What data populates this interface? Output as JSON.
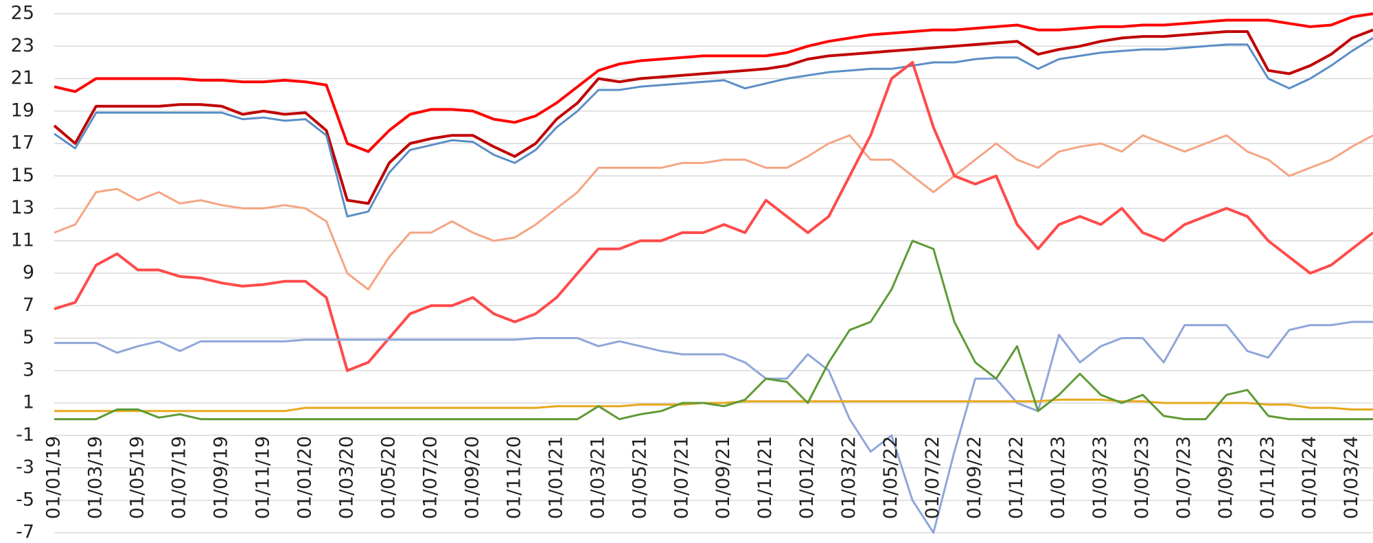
{
  "chart_data": {
    "type": "line",
    "categories": [
      "01/01/19",
      null,
      "01/03/19",
      null,
      "01/05/19",
      null,
      "01/07/19",
      null,
      "01/09/19",
      null,
      "01/11/19",
      null,
      "01/01/20",
      null,
      "01/03/20",
      null,
      "01/05/20",
      null,
      "01/07/20",
      null,
      "01/09/20",
      null,
      "01/11/20",
      null,
      "01/01/21",
      null,
      "01/03/21",
      null,
      "01/05/21",
      null,
      "01/07/21",
      null,
      "01/09/21",
      null,
      "01/11/21",
      null,
      "01/01/22",
      null,
      "01/03/22",
      null,
      "01/05/22",
      null,
      "01/07/22",
      null,
      "01/09/22",
      null,
      "01/11/22",
      null,
      "01/01/23",
      null,
      "01/03/23",
      null,
      "01/05/23",
      null,
      "01/07/23",
      null,
      "01/09/23",
      null,
      "01/11/23",
      null,
      "01/01/24",
      null,
      "01/03/24",
      null
    ],
    "ylim": [
      -7,
      25
    ],
    "yticks": [
      -7,
      -5,
      -3,
      -1,
      1,
      3,
      5,
      7,
      9,
      11,
      13,
      15,
      17,
      19,
      21,
      23,
      25
    ],
    "grid": true,
    "series": [
      {
        "color": "#ff0000",
        "width": 4,
        "values": [
          20.5,
          20.2,
          21,
          21,
          21,
          21,
          21,
          20.9,
          20.9,
          20.8,
          20.8,
          20.9,
          20.8,
          20.6,
          17,
          16.5,
          17.8,
          18.8,
          19.1,
          19.1,
          19,
          18.5,
          18.3,
          18.7,
          19.5,
          20.5,
          21.5,
          21.9,
          22.1,
          22.2,
          22.3,
          22.4,
          22.4,
          22.4,
          22.4,
          22.6,
          23,
          23.3,
          23.5,
          23.7,
          23.8,
          23.9,
          24,
          24,
          24.1,
          24.2,
          24.3,
          24,
          24,
          24.1,
          24.2,
          24.2,
          24.3,
          24.3,
          24.4,
          24.5,
          24.6,
          24.6,
          24.6,
          24.4,
          24.2,
          24.3,
          24.8,
          25
        ]
      },
      {
        "color": "#c00000",
        "width": 4,
        "values": [
          18.1,
          17,
          19.3,
          19.3,
          19.3,
          19.3,
          19.4,
          19.4,
          19.3,
          18.8,
          19,
          18.8,
          18.9,
          17.8,
          13.5,
          13.3,
          15.8,
          17,
          17.3,
          17.5,
          17.5,
          16.8,
          16.2,
          17,
          18.5,
          19.5,
          21,
          20.8,
          21,
          21.1,
          21.2,
          21.3,
          21.4,
          21.5,
          21.6,
          21.8,
          22.2,
          22.4,
          22.5,
          22.6,
          22.7,
          22.8,
          22.9,
          23,
          23.1,
          23.2,
          23.3,
          22.5,
          22.8,
          23,
          23.3,
          23.5,
          23.6,
          23.6,
          23.7,
          23.8,
          23.9,
          23.9,
          21.5,
          21.3,
          21.8,
          22.5,
          23.5,
          24
        ]
      },
      {
        "color": "#5a8ec6",
        "width": 3,
        "values": [
          17.6,
          16.7,
          18.9,
          18.9,
          18.9,
          18.9,
          18.9,
          18.9,
          18.9,
          18.5,
          18.6,
          18.4,
          18.5,
          17.5,
          12.5,
          12.8,
          15.2,
          16.6,
          16.9,
          17.2,
          17.1,
          16.3,
          15.8,
          16.6,
          18,
          19,
          20.3,
          20.3,
          20.5,
          20.6,
          20.7,
          20.8,
          20.9,
          20.4,
          20.7,
          21,
          21.2,
          21.4,
          21.5,
          21.6,
          21.6,
          21.8,
          22,
          22,
          22.2,
          22.3,
          22.3,
          21.6,
          22.2,
          22.4,
          22.6,
          22.7,
          22.8,
          22.8,
          22.9,
          23,
          23.1,
          23.1,
          21,
          20.4,
          21,
          21.8,
          22.7,
          23.5
        ]
      },
      {
        "color": "#f4a582",
        "width": 3,
        "values": [
          11.5,
          12,
          14,
          14.2,
          13.5,
          14,
          13.3,
          13.5,
          13.2,
          13,
          13,
          13.2,
          13,
          12.2,
          9,
          8,
          10,
          11.5,
          11.5,
          12.2,
          11.5,
          11,
          11.2,
          12,
          13,
          14,
          15.5,
          15.5,
          15.5,
          15.5,
          15.8,
          15.8,
          16,
          16,
          15.5,
          15.5,
          16.2,
          17,
          17.5,
          16,
          16,
          15,
          14,
          15,
          16,
          17,
          16,
          15.5,
          16.5,
          16.8,
          17,
          16.5,
          17.5,
          17,
          16.5,
          17,
          17.5,
          16.5,
          16,
          15,
          15.5,
          16,
          16.8,
          17.5
        ]
      },
      {
        "color": "#ff4b4b",
        "width": 4,
        "values": [
          6.8,
          7.2,
          9.5,
          10.2,
          9.2,
          9.2,
          8.8,
          8.7,
          8.4,
          8.2,
          8.3,
          8.5,
          8.5,
          7.5,
          3,
          3.5,
          5,
          6.5,
          7,
          7,
          7.5,
          6.5,
          6,
          6.5,
          7.5,
          9,
          10.5,
          10.5,
          11,
          11,
          11.5,
          11.5,
          12,
          11.5,
          13.5,
          12.5,
          11.5,
          12.5,
          15,
          17.5,
          21,
          22,
          18,
          15,
          14.5,
          15,
          12,
          10.5,
          12,
          12.5,
          12,
          13,
          11.5,
          11,
          12,
          12.5,
          13,
          12.5,
          11,
          10,
          9,
          9.5,
          10.5,
          11.5
        ]
      },
      {
        "color": "#8fa6d9",
        "width": 3,
        "values": [
          4.7,
          4.7,
          4.7,
          4.1,
          4.5,
          4.8,
          4.2,
          4.8,
          4.8,
          4.8,
          4.8,
          4.8,
          4.9,
          4.9,
          4.9,
          4.9,
          4.9,
          4.9,
          4.9,
          4.9,
          4.9,
          4.9,
          4.9,
          5,
          5,
          5,
          4.5,
          4.8,
          4.5,
          4.2,
          4,
          4,
          4,
          3.5,
          2.5,
          2.5,
          4,
          3,
          0,
          -2,
          -1,
          -5,
          -7,
          -2,
          2.5,
          2.5,
          1,
          0.5,
          5.2,
          3.5,
          4.5,
          5,
          5,
          3.5,
          5.8,
          5.8,
          5.8,
          4.2,
          3.8,
          5.5,
          5.8,
          5.8,
          6,
          6
        ]
      },
      {
        "color": "#e8a81c",
        "width": 3,
        "values": [
          0.5,
          0.5,
          0.5,
          0.5,
          0.5,
          0.5,
          0.5,
          0.5,
          0.5,
          0.5,
          0.5,
          0.5,
          0.7,
          0.7,
          0.7,
          0.7,
          0.7,
          0.7,
          0.7,
          0.7,
          0.7,
          0.7,
          0.7,
          0.7,
          0.8,
          0.8,
          0.8,
          0.8,
          0.9,
          0.9,
          0.9,
          1,
          1,
          1.1,
          1.1,
          1.1,
          1.1,
          1.1,
          1.1,
          1.1,
          1.1,
          1.1,
          1.1,
          1.1,
          1.1,
          1.1,
          1.1,
          1.1,
          1.2,
          1.2,
          1.2,
          1.1,
          1.1,
          1,
          1,
          1,
          1,
          1,
          0.9,
          0.9,
          0.7,
          0.7,
          0.6,
          0.6
        ]
      },
      {
        "color": "#5e9a35",
        "width": 3,
        "values": [
          0,
          0,
          0,
          0.6,
          0.6,
          0.1,
          0.3,
          0,
          0,
          0,
          0,
          0,
          0,
          0,
          0,
          0,
          0,
          0,
          0,
          0,
          0,
          0,
          0,
          0,
          0,
          0,
          0.8,
          0,
          0.3,
          0.5,
          1,
          1,
          0.8,
          1.2,
          2.5,
          2.3,
          1,
          3.5,
          5.5,
          6,
          8,
          11,
          10.5,
          6,
          3.5,
          2.5,
          4.5,
          0.5,
          1.5,
          2.8,
          1.5,
          1,
          1.5,
          0.2,
          0,
          0,
          1.5,
          1.8,
          0.2,
          0,
          0,
          0,
          0,
          0
        ]
      }
    ]
  }
}
